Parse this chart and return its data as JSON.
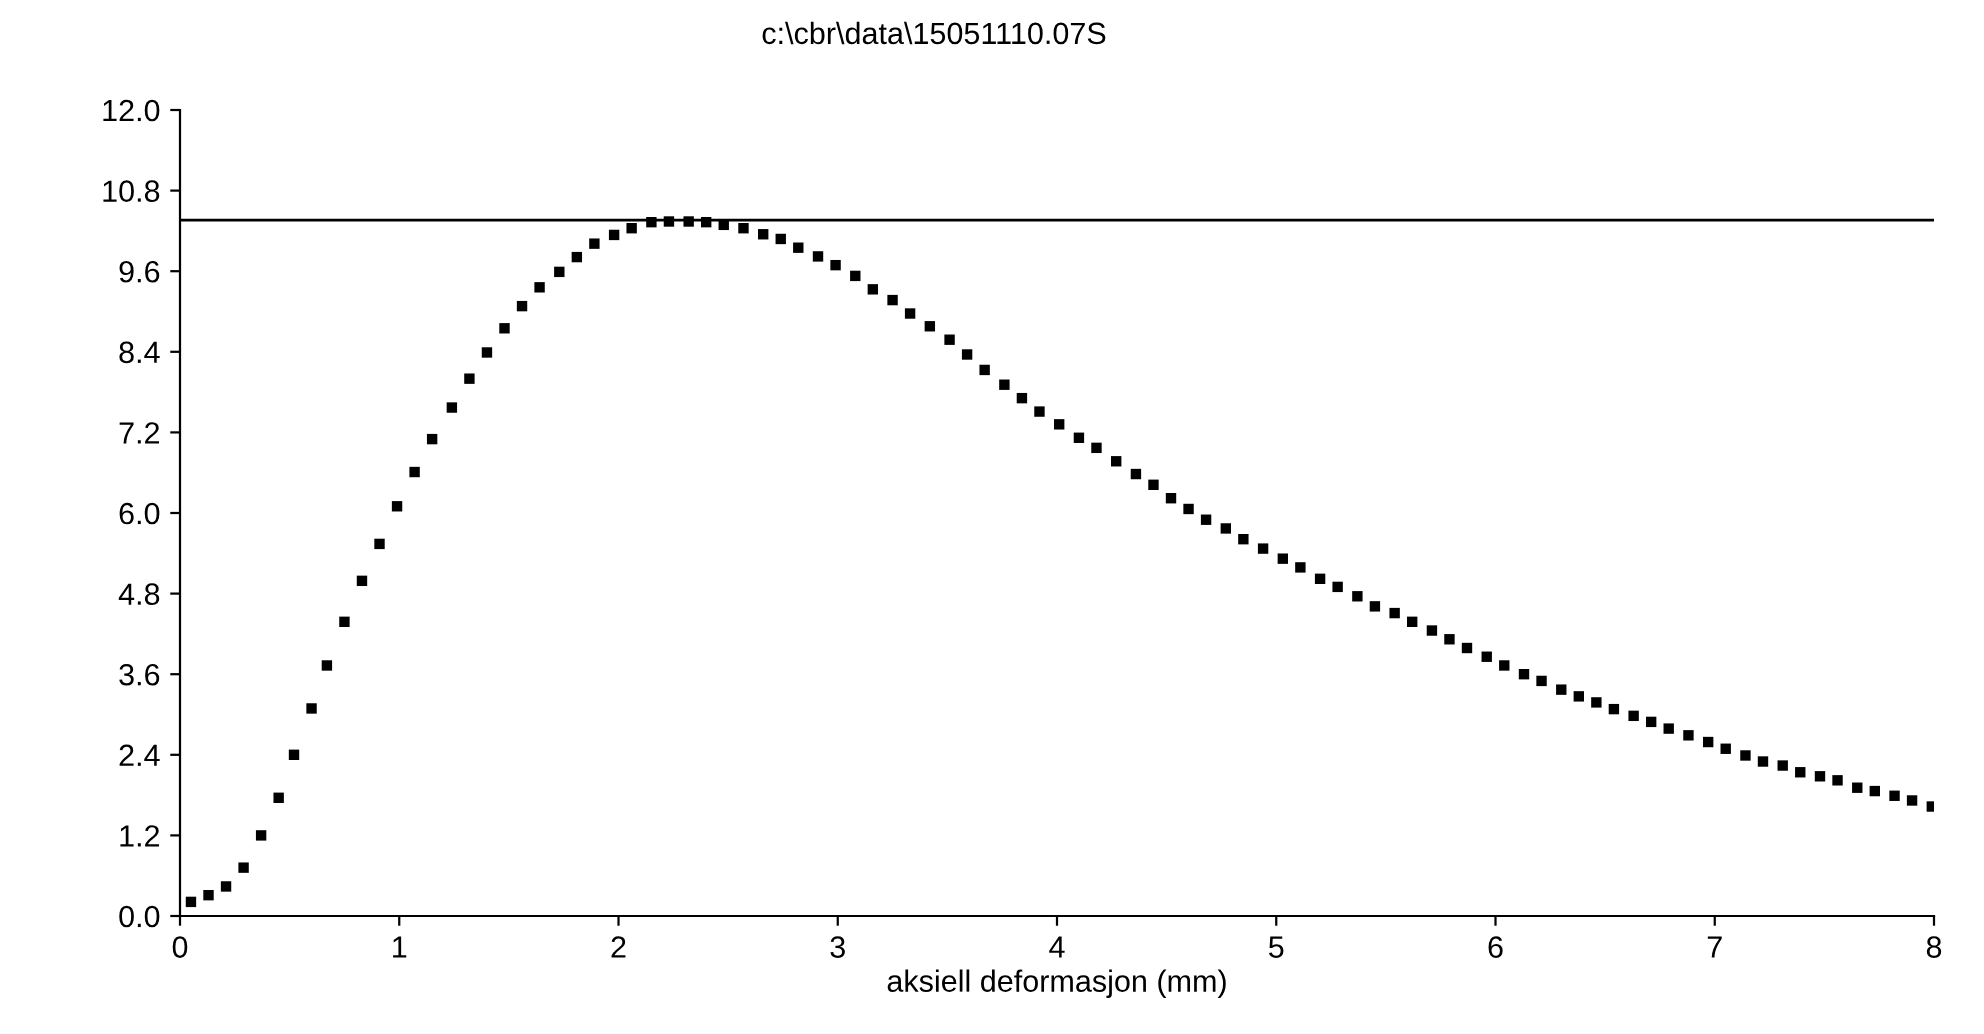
{
  "chart_data": {
    "type": "scatter",
    "title": "c:\\cbr\\data\\15051110.07S",
    "xlabel": "aksiell deformasjon (mm)",
    "marker": "square",
    "grid": false,
    "legend": false,
    "xlim": [
      0,
      8
    ],
    "xticks": [
      0,
      1,
      2,
      3,
      4,
      5,
      6,
      7,
      8
    ],
    "ylim": [
      0,
      12
    ],
    "yticks": [
      {
        "value": 0,
        "label": "0.0"
      },
      {
        "value": 1.2,
        "label": "1.2"
      },
      {
        "value": 2.4,
        "label": "2.4"
      },
      {
        "value": 3.6,
        "label": "3.6"
      },
      {
        "value": 4.8,
        "label": "4.8"
      },
      {
        "value": 6,
        "label": "6.0"
      },
      {
        "value": 7.2,
        "label": "7.2"
      },
      {
        "value": 8.4,
        "label": "8.4"
      },
      {
        "value": 9.6,
        "label": "9.6"
      },
      {
        "value": 10.8,
        "label": "10.8"
      },
      {
        "value": 12,
        "label": "12.0"
      }
    ],
    "ref_lines": [
      {
        "axis": "y",
        "value": 10.36,
        "color": "#000000"
      }
    ],
    "series": [
      {
        "color": "#000000",
        "x": [
          0.05,
          0.13,
          0.21,
          0.29,
          0.37,
          0.45,
          0.52,
          0.6,
          0.67,
          0.75,
          0.83,
          0.91,
          0.99,
          1.07,
          1.15,
          1.24,
          1.32,
          1.4,
          1.48,
          1.56,
          1.64,
          1.73,
          1.81,
          1.89,
          1.98,
          2.06,
          2.15,
          2.23,
          2.32,
          2.4,
          2.48,
          2.57,
          2.66,
          2.74,
          2.82,
          2.91,
          2.99,
          3.08,
          3.16,
          3.25,
          3.33,
          3.42,
          3.51,
          3.59,
          3.67,
          3.76,
          3.84,
          3.92,
          4.01,
          4.1,
          4.18,
          4.27,
          4.36,
          4.44,
          4.52,
          4.6,
          4.68,
          4.77,
          4.85,
          4.94,
          5.03,
          5.11,
          5.2,
          5.28,
          5.37,
          5.45,
          5.54,
          5.62,
          5.71,
          5.79,
          5.87,
          5.96,
          6.04,
          6.13,
          6.21,
          6.3,
          6.38,
          6.46,
          6.54,
          6.63,
          6.71,
          6.79,
          6.88,
          6.97,
          7.05,
          7.14,
          7.22,
          7.31,
          7.39,
          7.48,
          7.56,
          7.65,
          7.73,
          7.82,
          7.9,
          7.99
        ],
        "values": [
          0.21,
          0.31,
          0.44,
          0.72,
          1.2,
          1.76,
          2.4,
          3.09,
          3.73,
          4.38,
          4.99,
          5.54,
          6.1,
          6.61,
          7.1,
          7.57,
          8.0,
          8.39,
          8.75,
          9.08,
          9.36,
          9.59,
          9.81,
          10.01,
          10.14,
          10.24,
          10.33,
          10.34,
          10.34,
          10.33,
          10.29,
          10.24,
          10.15,
          10.08,
          9.95,
          9.82,
          9.69,
          9.53,
          9.33,
          9.17,
          8.97,
          8.78,
          8.58,
          8.36,
          8.13,
          7.91,
          7.71,
          7.51,
          7.32,
          7.12,
          6.97,
          6.77,
          6.58,
          6.42,
          6.22,
          6.06,
          5.9,
          5.77,
          5.61,
          5.47,
          5.32,
          5.19,
          5.02,
          4.9,
          4.76,
          4.61,
          4.51,
          4.38,
          4.25,
          4.12,
          3.99,
          3.86,
          3.73,
          3.6,
          3.5,
          3.37,
          3.27,
          3.18,
          3.08,
          2.98,
          2.89,
          2.79,
          2.69,
          2.59,
          2.49,
          2.39,
          2.3,
          2.24,
          2.14,
          2.08,
          2.02,
          1.91,
          1.86,
          1.79,
          1.72,
          1.63
        ]
      }
    ]
  }
}
